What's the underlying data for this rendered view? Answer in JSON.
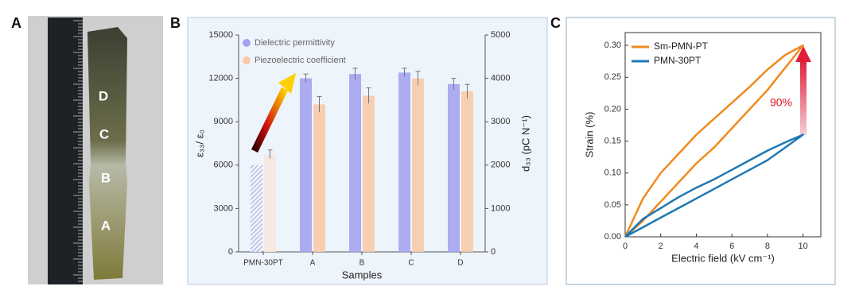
{
  "panels": [
    "A",
    "B",
    "C"
  ],
  "photo": {
    "labels": [
      "D",
      "C",
      "B",
      "A"
    ]
  },
  "chart_data": [
    {
      "type": "bar",
      "xlabel": "Samples",
      "ylabel": "ε₃₃/ ε₀",
      "y2label": "d₃₃ (pC N⁻¹)",
      "categories": [
        "PMN-30PT",
        "A",
        "B",
        "C",
        "D"
      ],
      "series": [
        {
          "name": "Dielectric permittivity",
          "color": "#a4a4f0",
          "values": [
            6000,
            12000,
            12300,
            12400,
            11600
          ],
          "errors": [
            0,
            300,
            400,
            300,
            400
          ]
        },
        {
          "name": "Piezoelectric coefficient",
          "color": "#f8caa8",
          "axis": "y2",
          "values": [
            2250,
            3400,
            3600,
            4000,
            3700
          ],
          "errors": [
            100,
            180,
            180,
            160,
            160
          ]
        }
      ],
      "ylim": [
        0,
        15000
      ],
      "yticks": [
        0,
        3000,
        6000,
        9000,
        12000,
        15000
      ],
      "y2lim": [
        0,
        5000
      ],
      "y2ticks": [
        0,
        1000,
        2000,
        3000,
        4000,
        5000
      ],
      "legend": "top-left"
    },
    {
      "type": "line",
      "xlabel": "Electric field (kV cm⁻¹)",
      "ylabel": "Strain (%)",
      "annotation": "90%",
      "x": [
        0,
        1,
        2,
        3,
        4,
        5,
        6,
        7,
        8,
        9,
        10,
        9,
        8,
        7,
        6,
        5,
        4,
        3,
        2,
        1,
        0
      ],
      "series": [
        {
          "name": "Sm-PMN-PT",
          "color": "#f28a1e",
          "values": [
            0,
            0.025,
            0.055,
            0.085,
            0.115,
            0.14,
            0.17,
            0.2,
            0.23,
            0.265,
            0.3,
            0.285,
            0.262,
            0.235,
            0.21,
            0.185,
            0.16,
            0.13,
            0.1,
            0.06,
            0
          ]
        },
        {
          "name": "PMN-30PT",
          "color": "#1f78b4",
          "values": [
            0,
            0.015,
            0.03,
            0.045,
            0.06,
            0.075,
            0.09,
            0.105,
            0.12,
            0.14,
            0.16,
            0.148,
            0.135,
            0.12,
            0.105,
            0.09,
            0.077,
            0.062,
            0.045,
            0.028,
            0
          ]
        }
      ],
      "xlim": [
        0,
        11
      ],
      "xticks": [
        0,
        2,
        4,
        6,
        8,
        10
      ],
      "ylim": [
        0,
        0.32
      ],
      "yticks": [
        {
          "value": 0,
          "label": "0.00"
        },
        0.05,
        {
          "value": 0.1,
          "label": "0.10"
        },
        0.15,
        {
          "value": 0.2,
          "label": "0.20"
        },
        0.25,
        {
          "value": 0.3,
          "label": "0.30"
        }
      ],
      "legend": "top-left"
    }
  ]
}
